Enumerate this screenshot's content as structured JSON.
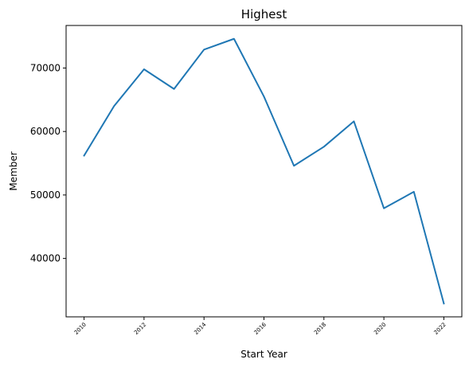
{
  "chart_data": {
    "type": "line",
    "title": "Highest",
    "xlabel": "Start Year",
    "ylabel": "Member",
    "x": [
      2010,
      2011,
      2012,
      2013,
      2014,
      2015,
      2016,
      2017,
      2018,
      2019,
      2020,
      2021,
      2022
    ],
    "series": [
      {
        "values": [
          56200,
          64000,
          69800,
          66700,
          72900,
          74600,
          65500,
          54600,
          57600,
          61600,
          47900,
          50500,
          32900
        ],
        "color": "#1f77b4"
      }
    ],
    "xticks": [
      "2010",
      "2012",
      "2014",
      "2016",
      "2018",
      "2020",
      "2022"
    ],
    "yticks": [
      "40000",
      "50000",
      "60000",
      "70000"
    ],
    "xlim": [
      2009.4,
      2022.6
    ],
    "ylim": [
      30800,
      76700
    ],
    "grid": false,
    "legend": null
  }
}
